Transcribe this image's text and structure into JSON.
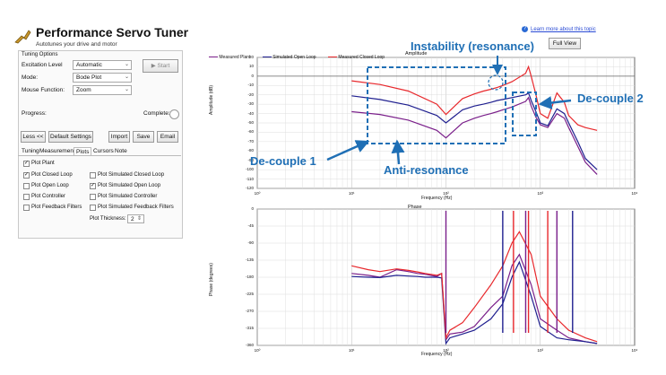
{
  "app": {
    "title": "Performance Servo Tuner",
    "subtitle": "Autotunes your drive and motor"
  },
  "help": {
    "link": "Learn more about this topic",
    "full_view": "Full View"
  },
  "tuning_options": {
    "header": "Tuning Options",
    "excitation_label": "Excitation Level",
    "excitation_value": "Automatic",
    "start_label": "Start",
    "mode_label": "Mode:",
    "mode_value": "Bode Plot",
    "mouse_label": "Mouse Function:",
    "mouse_value": "Zoom"
  },
  "progress": {
    "label": "Progress:",
    "complete_label": "Complete:"
  },
  "buttons": {
    "less": "Less <<",
    "defaults": "Default Settings",
    "import": "Import",
    "save": "Save",
    "email": "Email"
  },
  "tabs": [
    "Tuning",
    "Measurement",
    "Plots",
    "Cursors",
    "Note"
  ],
  "plots": {
    "checks": [
      {
        "label": "Plot Plant",
        "checked": true
      },
      {
        "label": "Plot Closed Loop",
        "checked": true
      },
      {
        "label": "Plot Open Loop",
        "checked": false
      },
      {
        "label": "Plot Controller",
        "checked": false
      },
      {
        "label": "Plot Feedback Filters",
        "checked": false
      },
      {
        "label": "Plot Simulated Closed Loop",
        "checked": false
      },
      {
        "label": "Plot Simulated Open Loop",
        "checked": true
      },
      {
        "label": "Plot Simulated Controller",
        "checked": false
      },
      {
        "label": "Plot Simulated Feedback Filters",
        "checked": false
      }
    ],
    "thickness_label": "Plot Thickness:",
    "thickness_value": "2"
  },
  "amplitude_plot": {
    "title": "Amplitude",
    "ylabel": "Amplitude (dB)",
    "xlabel": "Frequency (Hz)",
    "yticks": [
      "20",
      "10",
      "0",
      "-10",
      "-20",
      "-30",
      "-40",
      "-50",
      "-60",
      "-70",
      "-80",
      "-90",
      "-100",
      "-110",
      "-120"
    ],
    "xticks": [
      "10¹",
      "10²",
      "10³",
      "10⁴"
    ],
    "legend": [
      "Measured Plant",
      "Simulated Open Loop",
      "Measured Closed Loop"
    ]
  },
  "phase_plot": {
    "title": "Phase",
    "ylabel": "Phase (degrees)",
    "xlabel": "Frequency (Hz)",
    "yticks": [
      "0",
      "-45",
      "-90",
      "-135",
      "-180",
      "-225",
      "-270",
      "-315",
      "-360"
    ],
    "xticks": [
      "10¹",
      "10²",
      "10³",
      "10⁴"
    ]
  },
  "colors": {
    "plant": "#7a1f8a",
    "open_loop": "#1f1f8f",
    "closed_loop": "#e8282c",
    "annotation": "#1f6fb5"
  },
  "annotations": {
    "instability": "Instability (resonance)",
    "decouple1": "De-couple 1",
    "decouple2": "De-couple 2",
    "antiresonance": "Anti-resonance"
  },
  "chart_data": [
    {
      "type": "line",
      "title": "Amplitude",
      "xlabel": "Frequency (Hz)",
      "ylabel": "Amplitude (dB)",
      "xscale": "log",
      "xlim": [
        1,
        10000
      ],
      "ylim": [
        -120,
        20
      ],
      "series": [
        {
          "name": "Measured Plant",
          "x": [
            10,
            20,
            40,
            80,
            100,
            150,
            200,
            250,
            300,
            350,
            400,
            500,
            700,
            750,
            800,
            900,
            1000,
            1200,
            1500,
            1800,
            2000,
            2500,
            3000,
            4000
          ],
          "y": [
            -38,
            -41,
            -47,
            -58,
            -66,
            -50,
            -45,
            -42,
            -40,
            -38,
            -36,
            -33,
            -27,
            -23,
            -32,
            -44,
            -52,
            -55,
            -40,
            -45,
            -55,
            -75,
            -92,
            -105
          ]
        },
        {
          "name": "Simulated Open Loop",
          "x": [
            10,
            20,
            40,
            80,
            100,
            150,
            200,
            250,
            300,
            350,
            400,
            500,
            700,
            750,
            800,
            900,
            1000,
            1200,
            1500,
            1800,
            2000,
            2500,
            3000,
            4000
          ],
          "y": [
            -21,
            -25,
            -31,
            -42,
            -50,
            -36,
            -32,
            -30,
            -28,
            -26,
            -25,
            -23,
            -20,
            -18,
            -26,
            -38,
            -50,
            -53,
            -35,
            -40,
            -50,
            -70,
            -88,
            -100
          ]
        },
        {
          "name": "Measured Closed Loop",
          "x": [
            10,
            20,
            40,
            80,
            100,
            150,
            200,
            250,
            300,
            350,
            400,
            500,
            700,
            750,
            800,
            900,
            1000,
            1200,
            1500,
            1800,
            2000,
            2500,
            3000,
            4000
          ],
          "y": [
            -5,
            -9,
            -16,
            -30,
            -41,
            -24,
            -19,
            -16,
            -14,
            -12,
            -10,
            -6,
            3,
            10,
            0,
            -20,
            -40,
            -45,
            -18,
            -28,
            -42,
            -52,
            -55,
            -58
          ]
        }
      ]
    },
    {
      "type": "line",
      "title": "Phase",
      "xlabel": "Frequency (Hz)",
      "ylabel": "Phase (degrees)",
      "xscale": "log",
      "xlim": [
        1,
        10000
      ],
      "ylim": [
        -360,
        0
      ],
      "series": [
        {
          "name": "Measured Plant",
          "x": [
            10,
            15,
            20,
            30,
            40,
            50,
            60,
            80,
            90,
            100,
            110,
            150,
            200,
            300,
            400,
            500,
            600,
            800,
            1000,
            1500,
            2000,
            3000,
            4000
          ],
          "y": [
            -170,
            -175,
            -180,
            -160,
            -165,
            -170,
            -172,
            -178,
            -170,
            -345,
            -330,
            -325,
            -310,
            -260,
            -230,
            -150,
            -120,
            -200,
            -290,
            -320,
            -340,
            -350,
            -355
          ]
        },
        {
          "name": "Simulated Open Loop",
          "x": [
            10,
            15,
            20,
            30,
            40,
            50,
            60,
            80,
            90,
            100,
            110,
            150,
            200,
            300,
            400,
            500,
            600,
            800,
            1000,
            1500,
            2000,
            3000,
            4000
          ],
          "y": [
            -178,
            -180,
            -181,
            -175,
            -177,
            -178,
            -180,
            -180,
            -182,
            -355,
            -340,
            -330,
            -320,
            -290,
            -250,
            -180,
            -140,
            -230,
            -310,
            -340,
            -345,
            -350,
            -355
          ]
        },
        {
          "name": "Measured Closed Loop",
          "x": [
            10,
            15,
            20,
            30,
            40,
            50,
            60,
            80,
            90,
            100,
            110,
            150,
            200,
            300,
            400,
            500,
            600,
            800,
            1000,
            1500,
            2000,
            3000,
            4000
          ],
          "y": [
            -150,
            -160,
            -165,
            -158,
            -162,
            -166,
            -170,
            -175,
            -170,
            -340,
            -320,
            -300,
            -260,
            -200,
            -150,
            -90,
            -60,
            -120,
            -230,
            -290,
            -320,
            -340,
            -350
          ]
        }
      ]
    }
  ]
}
